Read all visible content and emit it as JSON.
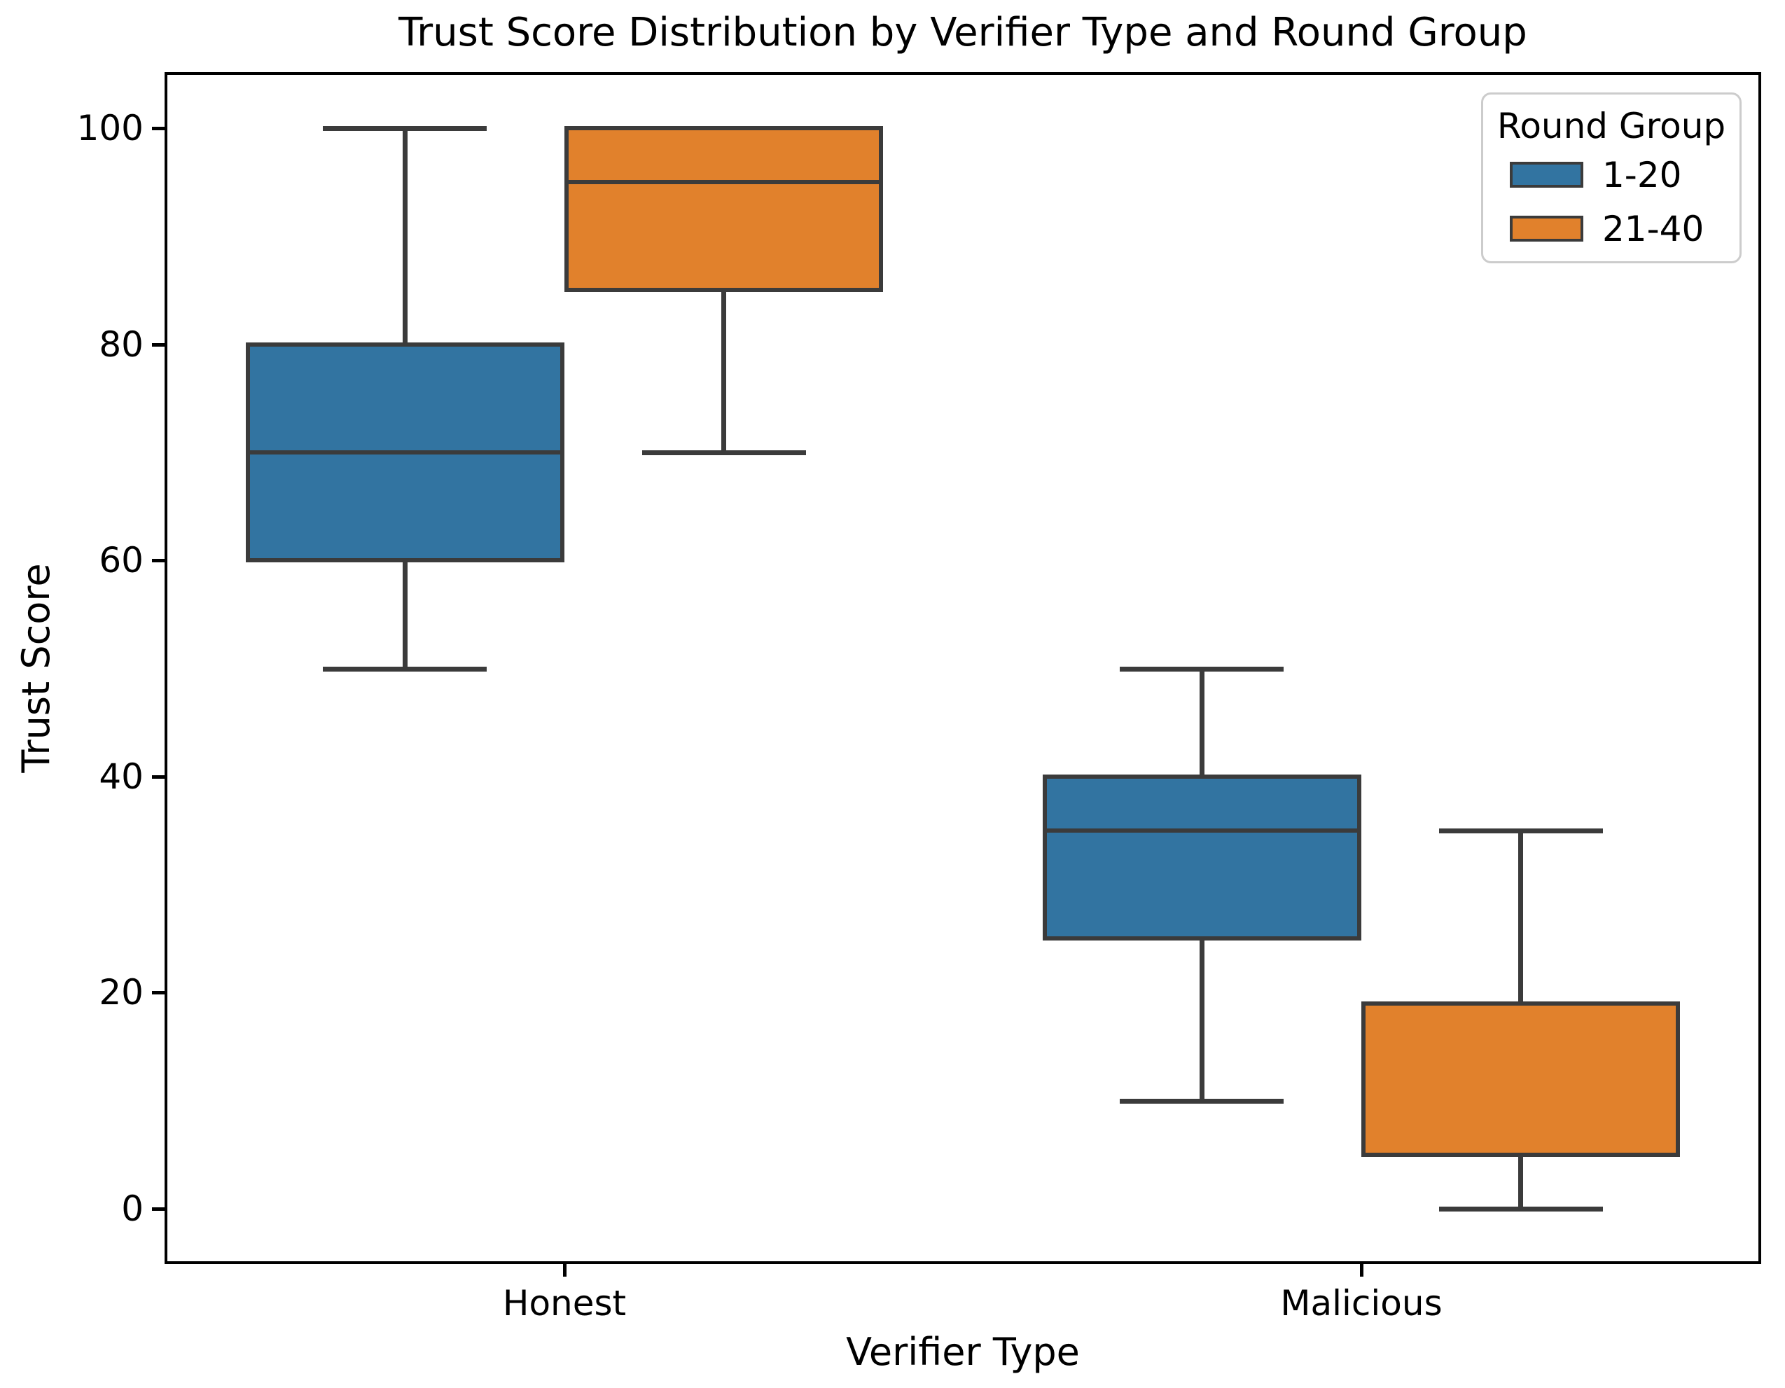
{
  "chart_data": {
    "type": "grouped_boxplot",
    "title": "Trust Score Distribution by Verifier Type and Round Group",
    "xlabel": "Verifier Type",
    "ylabel": "Trust Score",
    "categories": [
      "Honest",
      "Malicious"
    ],
    "yticks": [
      0,
      20,
      40,
      60,
      80,
      100
    ],
    "ylim": [
      -5,
      105
    ],
    "grid": false,
    "legend_title": "Round Group",
    "legend_position": "upper right",
    "colors": {
      "box_edge": "#3B3B3B",
      "spine": "#000000",
      "legend_border": "#cccccc"
    },
    "series": [
      {
        "name": "1-20",
        "color": "#3274A1",
        "boxes": [
          {
            "category": "Honest",
            "whisker_low": 50,
            "q1": 60,
            "median": 70,
            "q3": 80,
            "whisker_high": 100
          },
          {
            "category": "Malicious",
            "whisker_low": 10,
            "q1": 25,
            "median": 35,
            "q3": 40,
            "whisker_high": 50
          }
        ]
      },
      {
        "name": "21-40",
        "color": "#E1812C",
        "boxes": [
          {
            "category": "Honest",
            "whisker_low": 70,
            "q1": 85,
            "median": 95,
            "q3": 100,
            "whisker_high": 100
          },
          {
            "category": "Malicious",
            "whisker_low": 0,
            "q1": 5,
            "median": 5,
            "q3": 19,
            "whisker_high": 35
          }
        ]
      }
    ]
  }
}
